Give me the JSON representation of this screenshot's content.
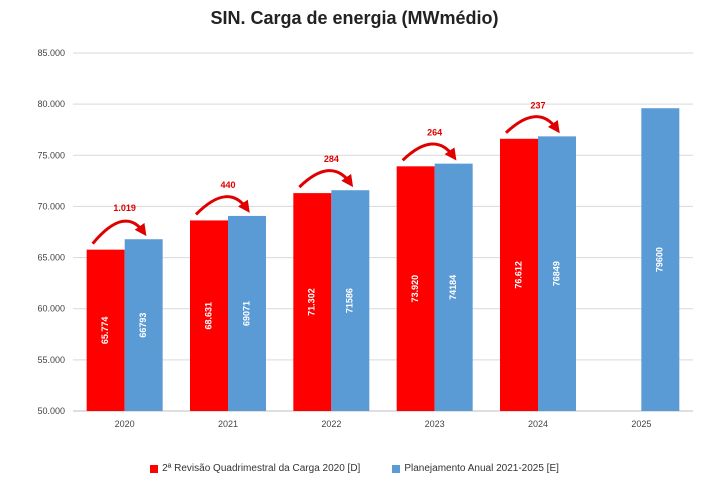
{
  "chart_data": {
    "type": "bar",
    "title": "SIN. Carga de energia (MWmédio)",
    "categories": [
      "2020",
      "2021",
      "2022",
      "2023",
      "2024",
      "2025"
    ],
    "series": [
      {
        "name": "2ª Revisão Quadrimestral da Carga 2020 [D]",
        "color": "#ff0000",
        "values": [
          65774,
          68631,
          71302,
          73920,
          76612,
          null
        ],
        "labels": [
          "65.774",
          "68.631",
          "71.302",
          "73.920",
          "76.612",
          ""
        ]
      },
      {
        "name": "Planejamento Anual 2021-2025 [E]",
        "color": "#5b9bd5",
        "values": [
          66793,
          69071,
          71586,
          74184,
          76849,
          79600
        ],
        "labels": [
          "66793",
          "69071",
          "71586",
          "74184",
          "76849",
          "79600"
        ]
      }
    ],
    "differences": [
      "1.019",
      "440",
      "284",
      "264",
      "237"
    ],
    "ylim": [
      50000,
      85000
    ],
    "yticks": [
      50000,
      55000,
      60000,
      65000,
      70000,
      75000,
      80000,
      85000
    ],
    "ytick_labels": [
      "50.000",
      "55.000",
      "60.000",
      "65.000",
      "70.000",
      "75.000",
      "80.000",
      "85.000"
    ],
    "grid": true,
    "legend_position": "bottom"
  }
}
